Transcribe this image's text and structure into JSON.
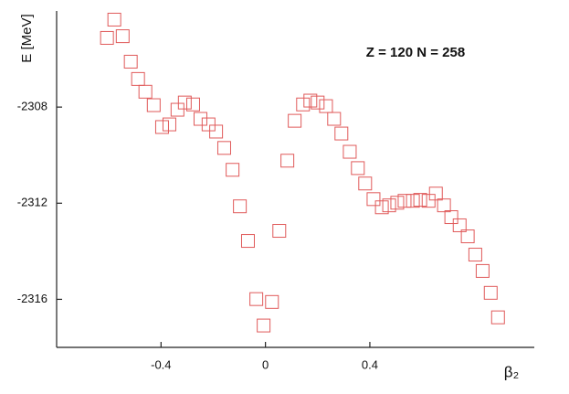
{
  "chart_data": {
    "type": "scatter",
    "annotation": "Z = 120  N = 258",
    "y_label": "E [MeV]",
    "x_label": "β₂",
    "xlim": [
      -0.8,
      1.03
    ],
    "xticks": [
      -0.4,
      0,
      0.4
    ],
    "ylim": [
      -2318,
      -2304
    ],
    "yticks": [
      -2308,
      -2312,
      -2316
    ],
    "marker_color": "#e05a5a",
    "x": [
      -0.607,
      -0.579,
      -0.547,
      -0.516,
      -0.488,
      -0.46,
      -0.428,
      -0.396,
      -0.368,
      -0.337,
      -0.309,
      -0.277,
      -0.249,
      -0.218,
      -0.189,
      -0.158,
      -0.126,
      -0.098,
      -0.067,
      -0.035,
      -0.007,
      0.025,
      0.053,
      0.084,
      0.112,
      0.144,
      0.172,
      0.2,
      0.232,
      0.263,
      0.291,
      0.323,
      0.354,
      0.382,
      0.414,
      0.446,
      0.474,
      0.505,
      0.533,
      0.565,
      0.593,
      0.625,
      0.653,
      0.684,
      0.712,
      0.744,
      0.775,
      0.804,
      0.832,
      0.863,
      0.891
    ],
    "values": [
      -2305.12,
      -2304.36,
      -2305.05,
      -2306.11,
      -2306.83,
      -2307.36,
      -2307.92,
      -2308.83,
      -2308.72,
      -2308.11,
      -2307.81,
      -2307.89,
      -2308.49,
      -2308.72,
      -2309.02,
      -2309.7,
      -2310.61,
      -2312.13,
      -2313.57,
      -2315.99,
      -2317.09,
      -2316.11,
      -2313.15,
      -2310.23,
      -2308.57,
      -2307.89,
      -2307.73,
      -2307.81,
      -2307.96,
      -2308.49,
      -2309.1,
      -2309.86,
      -2310.54,
      -2311.18,
      -2311.83,
      -2312.17,
      -2312.09,
      -2311.98,
      -2311.9,
      -2311.9,
      -2311.86,
      -2311.9,
      -2311.6,
      -2312.09,
      -2312.58,
      -2312.92,
      -2313.38,
      -2314.14,
      -2314.82,
      -2315.73,
      -2316.75
    ]
  }
}
